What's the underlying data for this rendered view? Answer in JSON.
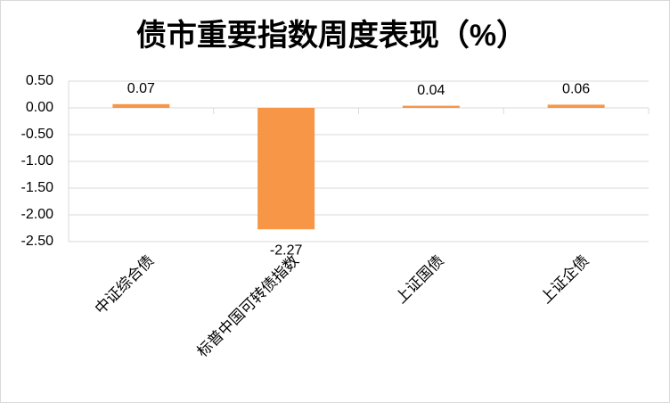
{
  "chart_data": {
    "type": "bar",
    "title": "债市重要指数周度表现（%）",
    "categories": [
      "中证综合债",
      "标普中国可转债指数",
      "上证国债",
      "上证企债"
    ],
    "values": [
      0.07,
      -2.27,
      0.04,
      0.06
    ],
    "color": "#f79646",
    "ylim": [
      -2.5,
      0.5
    ],
    "yticks": [
      {
        "value": -2.5,
        "label": "-2.50"
      },
      {
        "value": -2,
        "label": "-2.00"
      },
      {
        "value": -1.5,
        "label": "-1.50"
      },
      {
        "value": -1,
        "label": "-1.00"
      },
      {
        "value": -0.5,
        "label": "-0.50"
      },
      {
        "value": 0,
        "label": "0.00"
      },
      {
        "value": 0.5,
        "label": "0.50"
      }
    ],
    "grid": true
  }
}
